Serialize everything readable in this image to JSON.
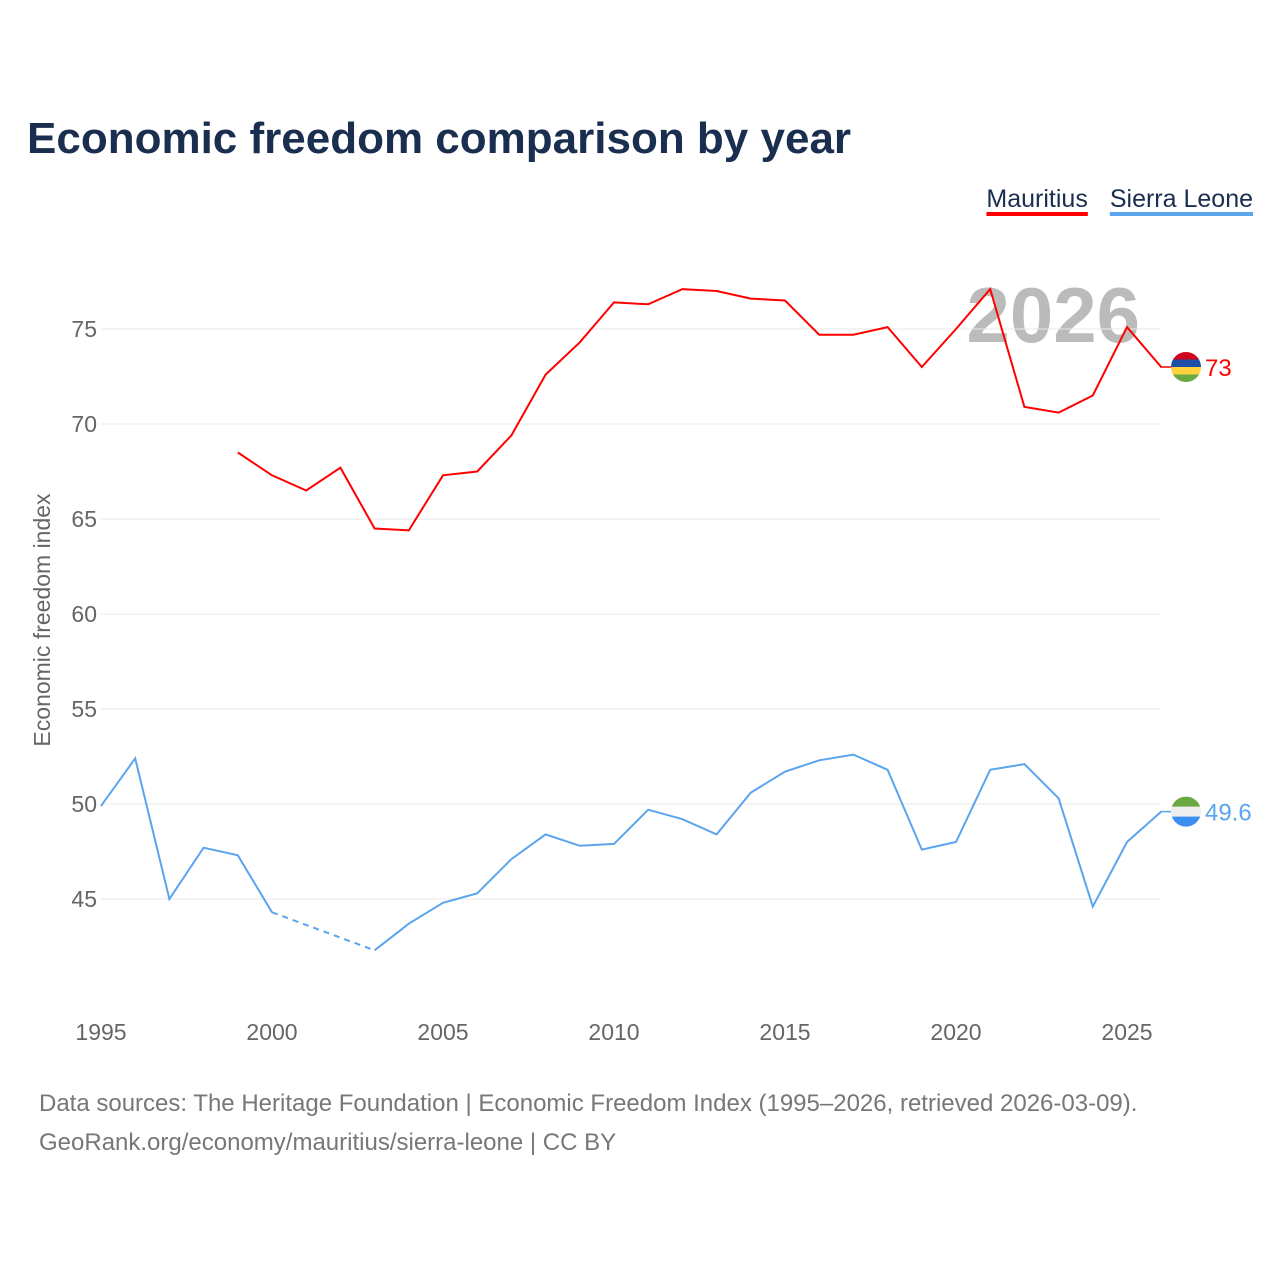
{
  "chart_data": {
    "type": "line",
    "title": "Economic freedom comparison by year",
    "ylabel": "Economic freedom index",
    "xlabel": "",
    "xlim": [
      1995,
      2026
    ],
    "ylim": [
      40.5,
      79
    ],
    "x_ticks": [
      "1995",
      "2000",
      "2005",
      "2010",
      "2015",
      "2020",
      "2025"
    ],
    "y_ticks": [
      "45",
      "50",
      "55",
      "60",
      "65",
      "70",
      "75"
    ],
    "grid": true,
    "legend_position": "top-right",
    "watermark_year": "2026",
    "x": [
      1995,
      1996,
      1997,
      1998,
      1999,
      2000,
      2001,
      2002,
      2003,
      2004,
      2005,
      2006,
      2007,
      2008,
      2009,
      2010,
      2011,
      2012,
      2013,
      2014,
      2015,
      2016,
      2017,
      2018,
      2019,
      2020,
      2021,
      2022,
      2023,
      2024,
      2025,
      2026
    ],
    "series": [
      {
        "name": "Mauritius",
        "color": "#ff0000",
        "end_label": "73",
        "flag_colors": [
          "#d0021b",
          "#1a4ea8",
          "#ffd33d",
          "#6aa843"
        ],
        "values": [
          null,
          null,
          null,
          null,
          68.5,
          67.3,
          66.5,
          67.7,
          64.5,
          64.4,
          67.3,
          67.5,
          69.4,
          72.6,
          74.3,
          76.4,
          76.3,
          77.1,
          77.0,
          76.6,
          76.5,
          74.7,
          74.7,
          75.1,
          73.0,
          75.0,
          77.1,
          70.9,
          70.6,
          71.5,
          75.1,
          73.0
        ]
      },
      {
        "name": "Sierra Leone",
        "color": "#5ba4ee",
        "end_label": "49.6",
        "flag_colors": [
          "#6aa843",
          "#eeeeee",
          "#3a8ff0"
        ],
        "values": [
          49.9,
          52.4,
          45.0,
          47.7,
          47.3,
          44.3,
          null,
          null,
          42.3,
          43.7,
          44.8,
          45.3,
          47.1,
          48.4,
          47.8,
          47.9,
          49.7,
          49.2,
          48.4,
          50.6,
          51.7,
          52.3,
          52.6,
          51.8,
          47.6,
          48.0,
          51.8,
          52.1,
          50.3,
          44.6,
          48.0,
          49.6
        ]
      }
    ]
  },
  "footer": {
    "line1": "Data sources: The Heritage Foundation | Economic Freedom Index (1995–2026, retrieved 2026-03-09).",
    "line2": "GeoRank.org/economy/mauritius/sierra-leone | CC BY"
  }
}
